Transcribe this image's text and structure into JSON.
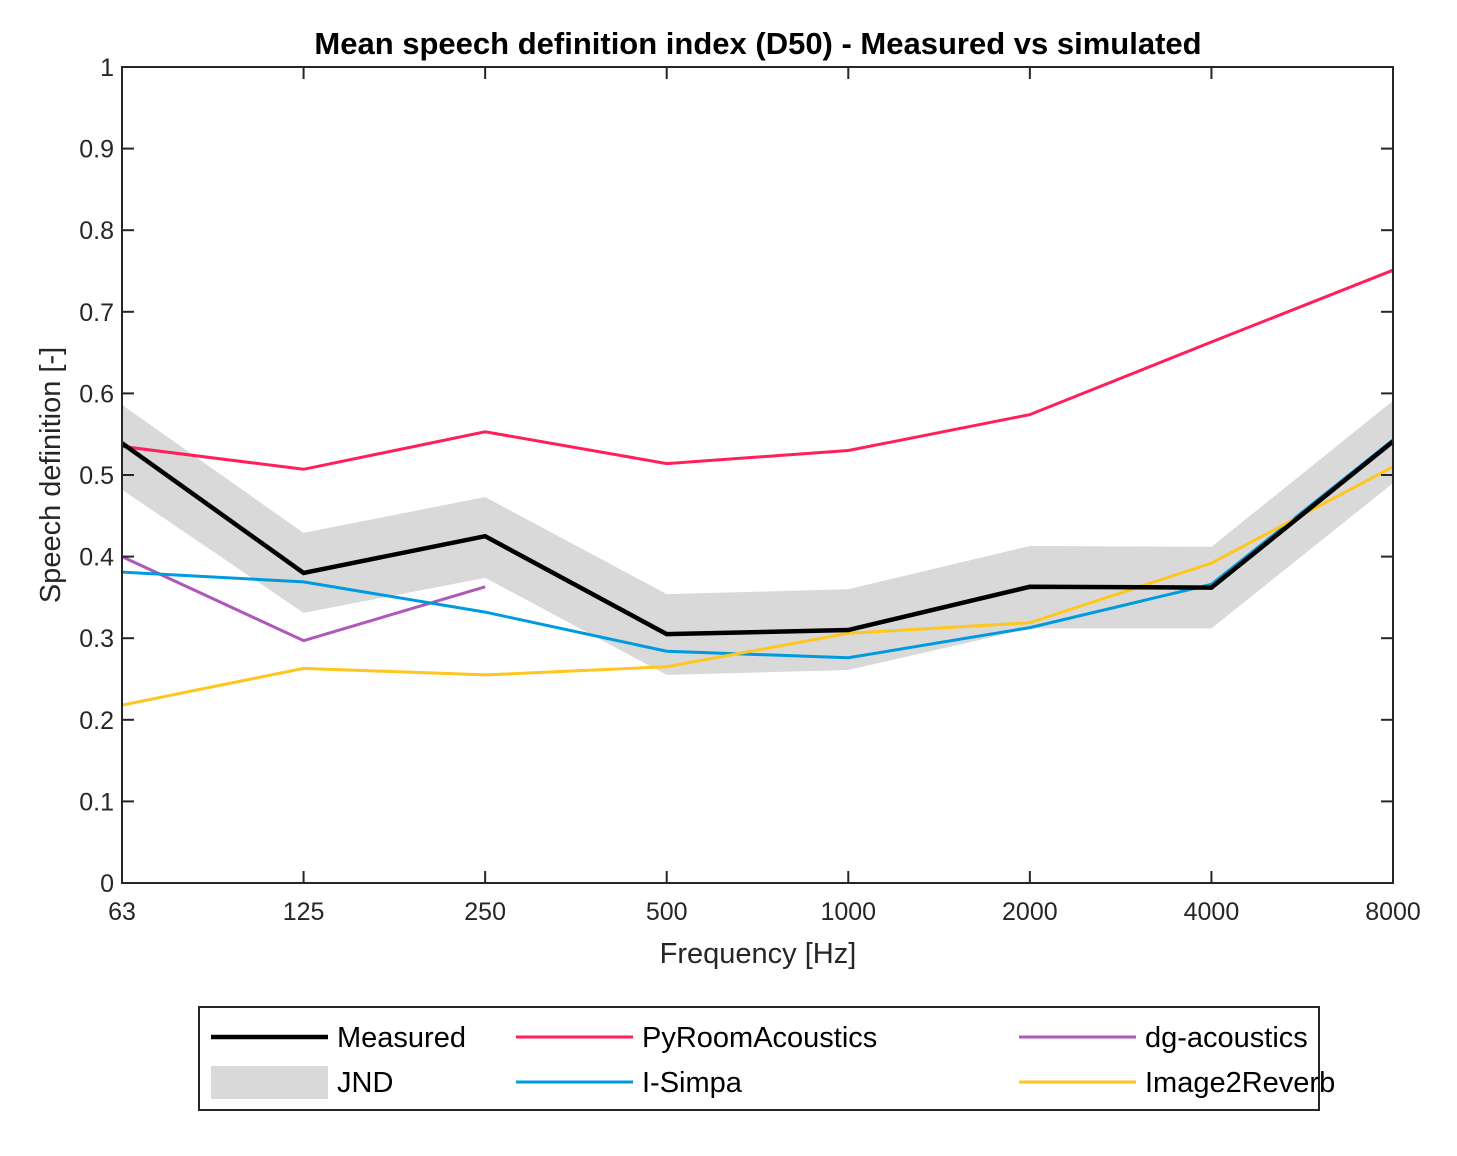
{
  "chart_data": {
    "type": "line",
    "title": "Mean speech definition index (D50) - Measured vs simulated",
    "xlabel": "Frequency [Hz]",
    "ylabel": "Speech definition [-]",
    "x": [
      63,
      125,
      250,
      500,
      1000,
      2000,
      4000,
      8000
    ],
    "x_tick_labels": [
      "63",
      "125",
      "250",
      "500",
      "1000",
      "2000",
      "4000",
      "8000"
    ],
    "x_scale": "categorical-octave",
    "ylim": [
      0,
      1
    ],
    "y_ticks": [
      0,
      0.1,
      0.2,
      0.3,
      0.4,
      0.5,
      0.6,
      0.7,
      0.8,
      0.9,
      1
    ],
    "y_tick_labels": [
      "0",
      "0.1",
      "0.2",
      "0.3",
      "0.4",
      "0.5",
      "0.6",
      "0.7",
      "0.8",
      "0.9",
      "1"
    ],
    "grid": false,
    "legend_position": "bottom-outside",
    "band": {
      "name": "JND",
      "color": "#D9D9D9",
      "upper": [
        0.586,
        0.429,
        0.473,
        0.354,
        0.36,
        0.413,
        0.412,
        0.591
      ],
      "lower": [
        0.482,
        0.331,
        0.374,
        0.255,
        0.261,
        0.312,
        0.312,
        0.49
      ]
    },
    "series": [
      {
        "name": "Measured",
        "color": "#000000",
        "values": [
          0.539,
          0.38,
          0.425,
          0.305,
          0.31,
          0.363,
          0.362,
          0.541
        ]
      },
      {
        "name": "PyRoomAcoustics",
        "color": "#FF1F5B",
        "values": [
          0.535,
          0.507,
          0.553,
          0.514,
          0.53,
          0.574,
          0.663,
          0.751
        ]
      },
      {
        "name": "dg-acoustics",
        "color": "#AF58BA",
        "values": [
          0.4,
          0.297,
          0.363,
          null,
          null,
          null,
          null,
          null
        ]
      },
      {
        "name": "I-Simpa",
        "color": "#009ADE",
        "values": [
          0.381,
          0.369,
          0.332,
          0.284,
          0.276,
          0.313,
          0.366,
          0.543
        ]
      },
      {
        "name": "Image2Reverb",
        "color": "#FFC61E",
        "values": [
          0.218,
          0.263,
          0.255,
          0.265,
          0.306,
          0.319,
          0.392,
          0.51
        ]
      }
    ],
    "legend": [
      {
        "label": "Measured",
        "kind": "line",
        "color": "#000000"
      },
      {
        "label": "PyRoomAcoustics",
        "kind": "line",
        "color": "#FF1F5B"
      },
      {
        "label": "dg-acoustics",
        "kind": "line",
        "color": "#AF58BA"
      },
      {
        "label": "JND",
        "kind": "patch",
        "color": "#D9D9D9"
      },
      {
        "label": "I-Simpa",
        "kind": "line",
        "color": "#009ADE"
      },
      {
        "label": "Image2Reverb",
        "kind": "line",
        "color": "#FFC61E"
      }
    ]
  }
}
